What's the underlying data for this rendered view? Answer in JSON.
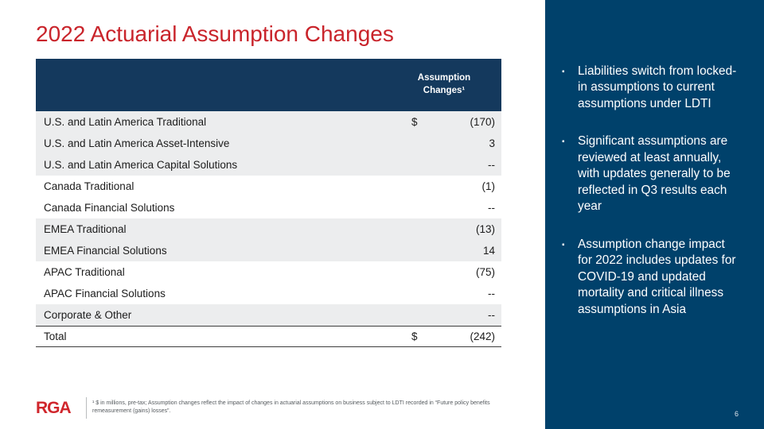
{
  "slide": {
    "title": "2022 Actuarial Assumption Changes",
    "page_number": "6"
  },
  "table": {
    "header": "Assumption Changes¹",
    "rows": [
      {
        "label": "U.S. and Latin America Traditional",
        "currency": "$",
        "value": "(170)",
        "group": "shaded"
      },
      {
        "label": "U.S. and Latin America Asset-Intensive",
        "currency": "",
        "value": "3",
        "group": "shaded"
      },
      {
        "label": "U.S. and Latin America Capital Solutions",
        "currency": "",
        "value": "--",
        "group": "shaded"
      },
      {
        "label": "Canada Traditional",
        "currency": "",
        "value": "(1)",
        "group": "plain"
      },
      {
        "label": "Canada Financial Solutions",
        "currency": "",
        "value": "--",
        "group": "plain"
      },
      {
        "label": "EMEA Traditional",
        "currency": "",
        "value": "(13)",
        "group": "shaded"
      },
      {
        "label": "EMEA Financial Solutions",
        "currency": "",
        "value": "14",
        "group": "shaded"
      },
      {
        "label": "APAC Traditional",
        "currency": "",
        "value": "(75)",
        "group": "plain"
      },
      {
        "label": "APAC Financial Solutions",
        "currency": "",
        "value": "--",
        "group": "plain"
      },
      {
        "label": "Corporate & Other",
        "currency": "",
        "value": "--",
        "group": "shaded"
      },
      {
        "label": "Total",
        "currency": "$",
        "value": "(242)",
        "group": "total"
      }
    ]
  },
  "sidebar": {
    "bullet_icon": "▪",
    "bullets": [
      "Liabilities switch from locked-in assumptions to current assumptions under LDTI",
      "Significant assumptions are reviewed at least annually, with updates generally to be reflected in Q3 results each year",
      "Assumption change impact for 2022 includes updates for COVID-19 and updated mortality and critical illness assumptions in Asia"
    ]
  },
  "footer": {
    "logo": "RGA",
    "footnote": "¹ $ in millions, pre-tax; Assumption changes reflect the impact of changes in actuarial assumptions on business subject to LDTI recorded in “Future policy benefits remeasurement (gains) losses”."
  },
  "colors": {
    "title_red": "#C9242B",
    "logo_red": "#D0262C",
    "sidebar_navy": "#00416B",
    "table_header_navy": "#14395D",
    "row_shade_gray": "#ECEDEE"
  }
}
